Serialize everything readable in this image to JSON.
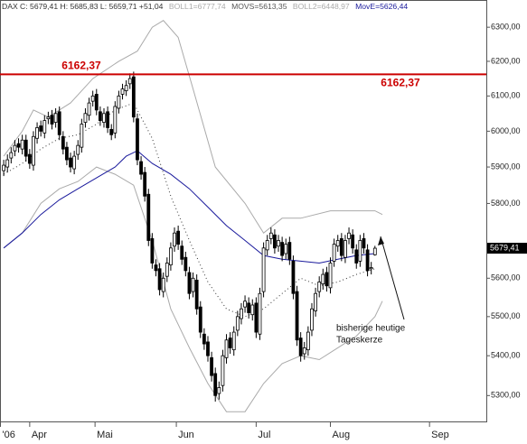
{
  "chart_data": {
    "type": "candlestick",
    "header": [
      "DAX C: 5679,41 H: 5685,83 L: 5659,71 +51,04",
      "BOLL1=6777,74",
      "MOVS=5613,35",
      "BOLL2=6448,97",
      "MovE=5626,44"
    ],
    "log": true,
    "xlim": [
      -1,
      130
    ],
    "ylim": [
      5236,
      6381
    ],
    "yticks": [
      {
        "value": 5300,
        "label": "5300,00"
      },
      {
        "value": 5400,
        "label": "5400,00"
      },
      {
        "value": 5500,
        "label": "5500,00"
      },
      {
        "value": 5600,
        "label": "5600,00"
      },
      {
        "value": 5800,
        "label": "5800,00"
      },
      {
        "value": 5900,
        "label": "5900,00"
      },
      {
        "value": 6000,
        "label": "6000,00"
      },
      {
        "value": 6100,
        "label": "6100,00"
      },
      {
        "value": 6200,
        "label": "6200,00"
      },
      {
        "value": 6300,
        "label": "6300,00"
      }
    ],
    "xticks": [
      {
        "value": -1,
        "label": "'06"
      },
      {
        "value": 7,
        "label": "Apr"
      },
      {
        "value": 24.6,
        "label": "Mai"
      },
      {
        "value": 46.5,
        "label": "Jun"
      },
      {
        "value": 68,
        "label": "Jul"
      },
      {
        "value": 88,
        "label": "Aug"
      },
      {
        "value": 114.7,
        "label": "Sep"
      }
    ],
    "grid": false,
    "x": [
      0,
      1,
      2,
      3,
      4,
      5,
      6,
      7,
      8,
      9,
      10,
      11,
      12,
      13,
      14,
      15,
      16,
      17,
      18,
      19,
      20,
      21,
      22,
      23,
      24,
      25,
      26,
      27,
      28,
      29,
      30,
      31,
      32,
      33,
      34,
      35,
      36,
      37,
      38,
      39,
      40,
      41,
      42,
      43,
      44,
      45,
      46,
      47,
      48,
      49,
      50,
      51,
      52,
      53,
      54,
      55,
      56,
      57,
      58,
      59,
      60,
      61,
      62,
      63,
      64,
      65,
      66,
      67,
      68,
      69,
      70,
      71,
      72,
      73,
      74,
      75,
      76,
      77,
      78,
      79,
      80,
      81,
      82,
      83,
      84,
      85,
      86,
      87,
      88,
      89,
      90,
      91,
      92,
      93,
      94,
      95,
      96,
      97,
      98,
      99,
      100
    ],
    "open": [
      5890,
      5900,
      5925,
      5945,
      5965,
      5950,
      5975,
      5935,
      5905,
      5980,
      6015,
      5995,
      6035,
      6045,
      6025,
      6055,
      5985,
      5955,
      5925,
      5895,
      5935,
      5955,
      6025,
      6045,
      6085,
      6105,
      6055,
      6025,
      6055,
      6005,
      5995,
      6065,
      6105,
      6115,
      6135,
      6155,
      6035,
      5915,
      5885,
      5825,
      5705,
      5635,
      5625,
      5565,
      5605,
      5635,
      5685,
      5725,
      5685,
      5655,
      5615,
      5565,
      5595,
      5525,
      5455,
      5435,
      5395,
      5355,
      5305,
      5325,
      5395,
      5445,
      5415,
      5465,
      5495,
      5525,
      5535,
      5505,
      5535,
      5455,
      5565,
      5675,
      5705,
      5715,
      5685,
      5695,
      5665,
      5695,
      5645,
      5565,
      5445,
      5405,
      5415,
      5465,
      5515,
      5565,
      5585,
      5615,
      5575,
      5645,
      5685,
      5705,
      5655,
      5705,
      5715,
      5675,
      5645,
      5705,
      5675,
      5625,
      5662
    ],
    "high": [
      5920,
      5935,
      5955,
      5975,
      5980,
      5990,
      5990,
      5950,
      6000,
      6025,
      6030,
      6045,
      6055,
      6060,
      6065,
      6070,
      6000,
      5970,
      5940,
      5945,
      5975,
      6035,
      6065,
      6095,
      6115,
      6120,
      6070,
      6065,
      6070,
      6020,
      6085,
      6115,
      6135,
      6145,
      6165,
      6170,
      6050,
      5930,
      5900,
      5840,
      5720,
      5650,
      5640,
      5615,
      5655,
      5695,
      5735,
      5740,
      5700,
      5670,
      5630,
      5615,
      5610,
      5540,
      5470,
      5450,
      5410,
      5370,
      5335,
      5415,
      5455,
      5460,
      5475,
      5515,
      5535,
      5555,
      5550,
      5545,
      5550,
      5575,
      5695,
      5715,
      5735,
      5730,
      5715,
      5710,
      5705,
      5710,
      5660,
      5580,
      5460,
      5435,
      5475,
      5535,
      5575,
      5605,
      5625,
      5630,
      5655,
      5705,
      5715,
      5720,
      5715,
      5735,
      5730,
      5690,
      5715,
      5720,
      5690,
      5643,
      5685.83
    ],
    "low": [
      5875,
      5885,
      5910,
      5930,
      5940,
      5935,
      5915,
      5895,
      5890,
      5965,
      5985,
      5980,
      6020,
      6005,
      6010,
      5975,
      5935,
      5905,
      5885,
      5880,
      5920,
      5940,
      6010,
      6030,
      6070,
      6045,
      6015,
      6010,
      5995,
      5975,
      5980,
      6050,
      6090,
      6100,
      6120,
      6025,
      5905,
      5865,
      5805,
      5685,
      5625,
      5605,
      5555,
      5550,
      5590,
      5620,
      5670,
      5675,
      5635,
      5605,
      5545,
      5550,
      5505,
      5445,
      5415,
      5385,
      5335,
      5285,
      5290,
      5310,
      5380,
      5405,
      5400,
      5450,
      5480,
      5510,
      5495,
      5490,
      5445,
      5440,
      5550,
      5660,
      5690,
      5665,
      5670,
      5645,
      5650,
      5635,
      5545,
      5425,
      5385,
      5390,
      5400,
      5450,
      5500,
      5550,
      5570,
      5565,
      5560,
      5630,
      5670,
      5645,
      5640,
      5690,
      5665,
      5625,
      5630,
      5665,
      5605,
      5610,
      5659.71
    ],
    "close": [
      5905,
      5920,
      5940,
      5960,
      5955,
      5975,
      5930,
      5910,
      5985,
      6010,
      6000,
      6030,
      6040,
      6020,
      6050,
      5990,
      5950,
      5920,
      5900,
      5930,
      5960,
      6020,
      6050,
      6080,
      6100,
      6060,
      6030,
      6050,
      6010,
      5990,
      6070,
      6100,
      6120,
      6130,
      6150,
      6040,
      5920,
      5880,
      5820,
      5700,
      5640,
      5620,
      5570,
      5600,
      5640,
      5680,
      5720,
      5690,
      5650,
      5620,
      5560,
      5600,
      5520,
      5460,
      5430,
      5400,
      5350,
      5300,
      5320,
      5400,
      5440,
      5420,
      5460,
      5500,
      5520,
      5540,
      5510,
      5530,
      5460,
      5560,
      5680,
      5700,
      5720,
      5680,
      5700,
      5660,
      5690,
      5650,
      5560,
      5440,
      5400,
      5420,
      5460,
      5520,
      5560,
      5590,
      5610,
      5580,
      5640,
      5690,
      5700,
      5660,
      5700,
      5720,
      5680,
      5640,
      5700,
      5680,
      5620,
      5628,
      5679.41
    ],
    "lines": [
      {
        "color": "#aaaaaa",
        "style": "solid",
        "x": [
          0,
          5,
          8,
          12,
          18,
          24,
          31,
          36,
          40,
          43,
          47,
          51,
          57,
          65,
          70,
          75,
          80,
          88,
          95,
          100,
          102
        ],
        "values": [
          5930,
          6000,
          6060,
          6040,
          6080,
          6150,
          6200,
          6230,
          6300,
          6320,
          6270,
          6120,
          5900,
          5800,
          5720,
          5760,
          5760,
          5780,
          5780,
          5780,
          5770
        ]
      },
      {
        "color": "#aaaaaa",
        "style": "solid",
        "x": [
          0,
          5,
          10,
          15,
          20,
          25,
          30,
          35,
          40,
          45,
          50,
          55,
          60,
          65,
          70,
          75,
          80,
          85,
          90,
          95,
          100,
          102
        ],
        "values": [
          5680,
          5720,
          5800,
          5840,
          5860,
          5900,
          5880,
          5850,
          5700,
          5520,
          5420,
          5330,
          5260,
          5260,
          5330,
          5380,
          5400,
          5390,
          5420,
          5450,
          5500,
          5540
        ]
      },
      {
        "color": "#333333",
        "style": "dotted",
        "x": [
          0,
          5,
          10,
          15,
          20,
          25,
          30,
          35,
          40,
          45,
          50,
          55,
          60,
          65,
          70,
          75,
          80,
          85,
          90,
          95,
          100
        ],
        "values": [
          5880,
          5910,
          5950,
          5980,
          5990,
          6020,
          6060,
          6080,
          5980,
          5820,
          5700,
          5590,
          5520,
          5500,
          5520,
          5560,
          5600,
          5580,
          5590,
          5610,
          5625
        ]
      },
      {
        "color": "#1a1a9c",
        "style": "solid",
        "x": [
          0,
          5,
          10,
          15,
          20,
          25,
          30,
          33,
          36,
          40,
          45,
          50,
          55,
          60,
          65,
          70,
          75,
          80,
          85,
          90,
          95,
          100
        ],
        "values": [
          5680,
          5720,
          5770,
          5810,
          5840,
          5870,
          5900,
          5930,
          5945,
          5910,
          5880,
          5840,
          5790,
          5740,
          5700,
          5660,
          5650,
          5645,
          5640,
          5650,
          5660,
          5665
        ]
      }
    ],
    "hline": {
      "value": 6162.37,
      "label": "6162,37",
      "color": "#cc0000"
    },
    "last_price": {
      "value": 5679.41,
      "label": "5679,41"
    },
    "annotation": [
      "bisherige heutige",
      "Tageskerze"
    ]
  }
}
